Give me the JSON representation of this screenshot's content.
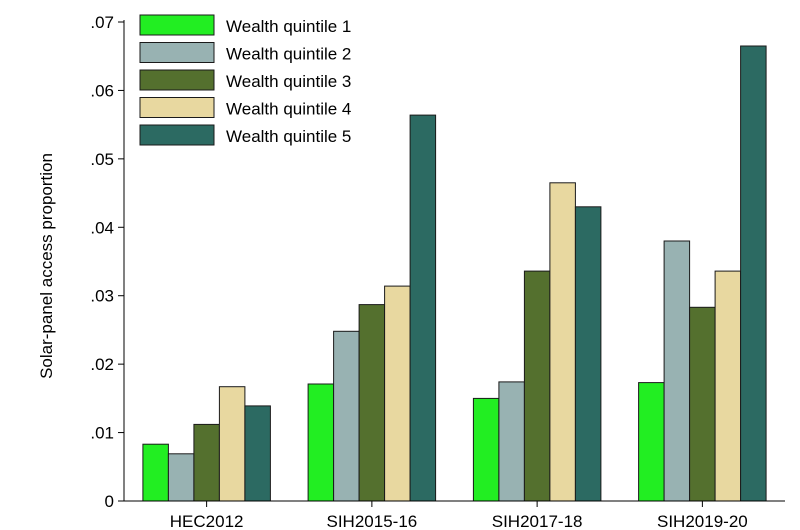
{
  "chart_data": {
    "type": "bar",
    "title": "",
    "xlabel": "",
    "ylabel": "Solar-panel access proportion",
    "ylim": [
      0,
      0.07
    ],
    "yticks": [
      0,
      0.01,
      0.02,
      0.03,
      0.04,
      0.05,
      0.06,
      0.07
    ],
    "ytick_labels": [
      "0",
      ".01",
      ".02",
      ".03",
      ".04",
      ".05",
      ".06",
      ".07"
    ],
    "grid": false,
    "legend_position": "top-left",
    "categories": [
      "HEC2012",
      "SIH2015-16",
      "SIH2017-18",
      "SIH2019-20"
    ],
    "series": [
      {
        "name": "Wealth quintile 1",
        "color": "#22ee22",
        "values": [
          0.0083,
          0.0171,
          0.015,
          0.0173
        ]
      },
      {
        "name": "Wealth quintile 2",
        "color": "#98b2b2",
        "values": [
          0.0069,
          0.0248,
          0.0174,
          0.038
        ]
      },
      {
        "name": "Wealth quintile 3",
        "color": "#54702e",
        "values": [
          0.0112,
          0.0287,
          0.0336,
          0.0283
        ]
      },
      {
        "name": "Wealth quintile 4",
        "color": "#e8d8a0",
        "values": [
          0.0167,
          0.0314,
          0.0465,
          0.0336
        ]
      },
      {
        "name": "Wealth quintile 5",
        "color": "#2c6a62",
        "values": [
          0.0139,
          0.0564,
          0.043,
          0.0665
        ]
      }
    ]
  }
}
